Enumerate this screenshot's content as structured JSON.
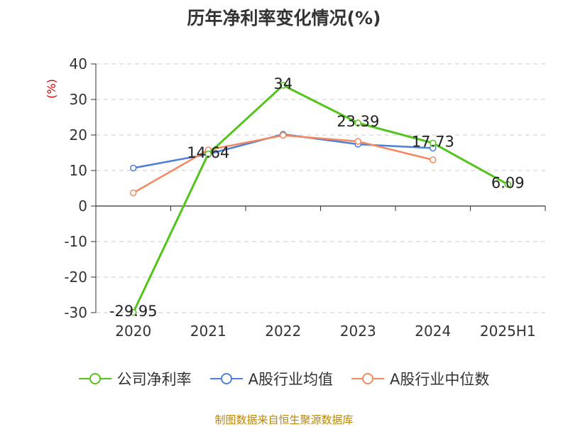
{
  "chart_data": {
    "type": "line",
    "title": "历年净利率变化情况(%)",
    "ylabel": "(%)",
    "categories": [
      "2020",
      "2021",
      "2022",
      "2023",
      "2024",
      "2025H1"
    ],
    "ylim": [
      -30,
      40
    ],
    "yticks": [
      40,
      30,
      20,
      10,
      0,
      -10,
      -20,
      -30
    ],
    "grid": true,
    "legend_position": "bottom",
    "series": [
      {
        "name": "公司净利率",
        "color": "#52c41a",
        "values": [
          -29.95,
          14.64,
          34,
          23.39,
          17.73,
          6.09
        ],
        "labels": [
          "-29.95",
          "14.64",
          "34",
          "23.39",
          "17.73",
          "6.09"
        ]
      },
      {
        "name": "A股行业均值",
        "color": "#4f7fd8",
        "values": [
          10.7,
          14.6,
          20.2,
          17.4,
          16.3,
          null
        ]
      },
      {
        "name": "A股行业中位数",
        "color": "#f4895f",
        "values": [
          3.7,
          15.8,
          19.9,
          18.2,
          13.0,
          null
        ]
      }
    ]
  },
  "source": "制图数据来自恒生聚源数据库"
}
